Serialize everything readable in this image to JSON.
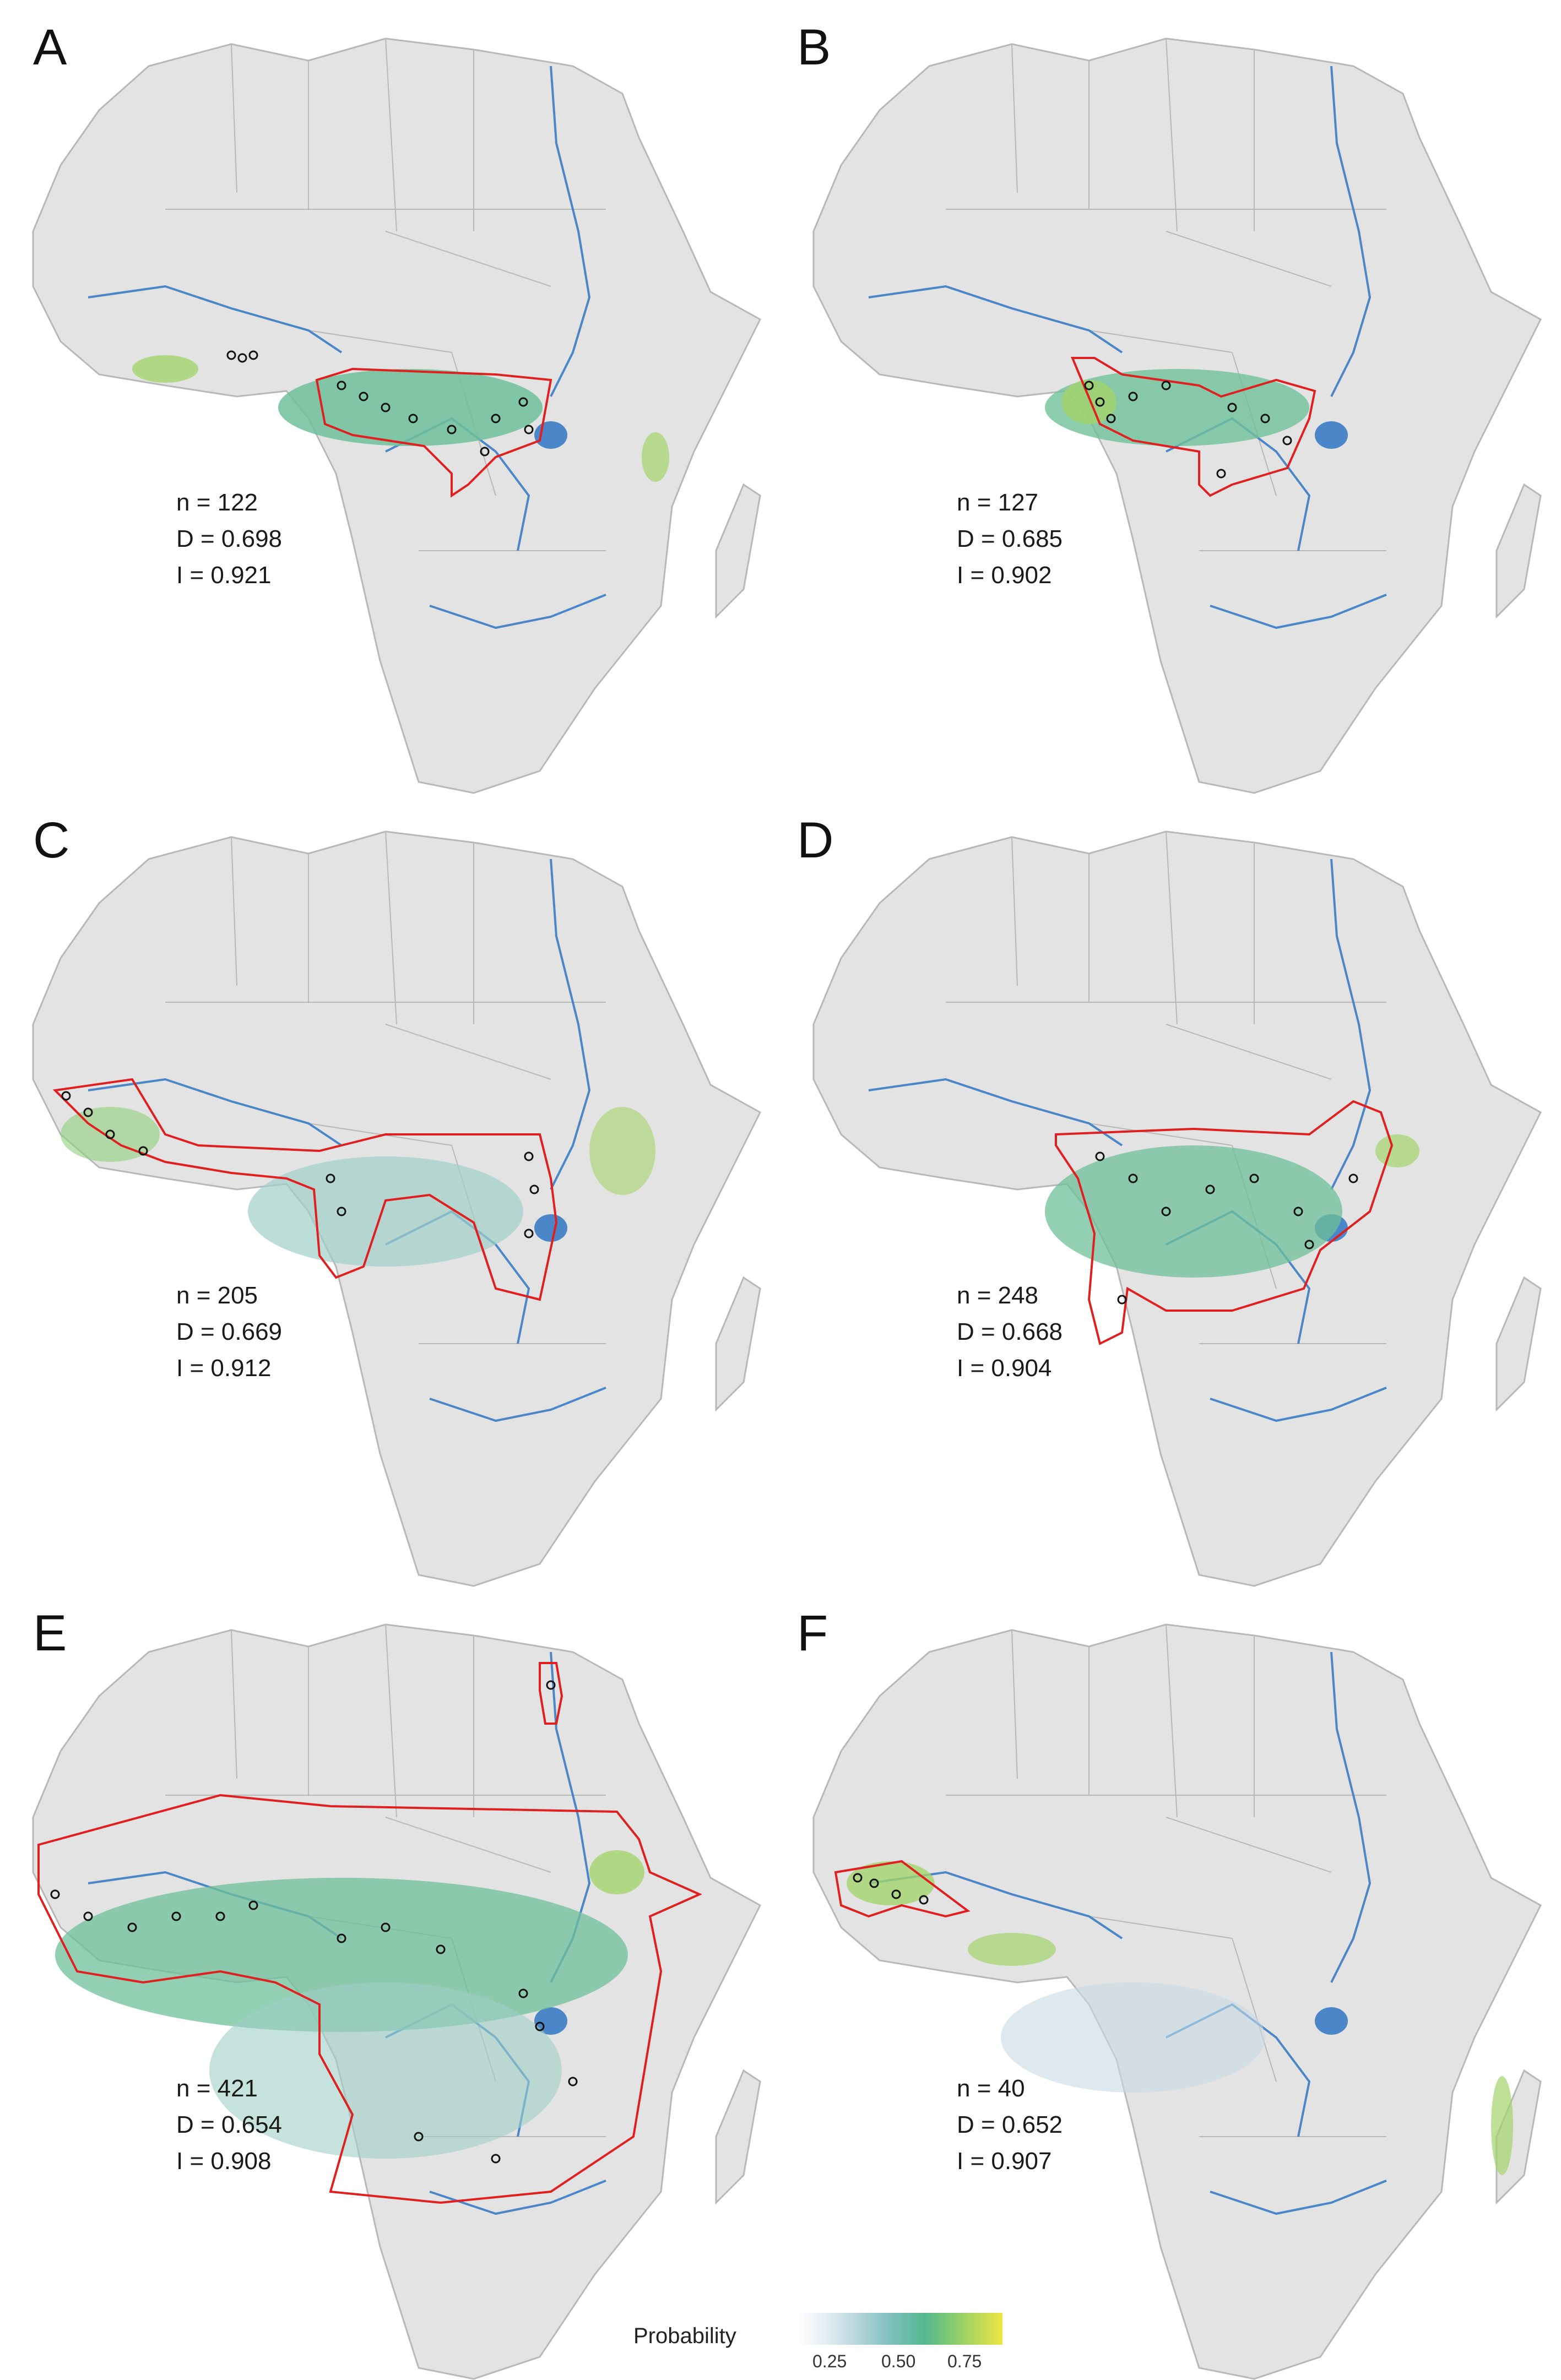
{
  "panels": [
    {
      "id": "A",
      "label": "A",
      "stats": {
        "n": "n = 122",
        "d": "D = 0.698",
        "i": "I = 0.921"
      }
    },
    {
      "id": "B",
      "label": "B",
      "stats": {
        "n": "n = 127",
        "d": "D = 0.685",
        "i": "I = 0.902"
      }
    },
    {
      "id": "C",
      "label": "C",
      "stats": {
        "n": "n = 205",
        "d": "D = 0.669",
        "i": "I = 0.912"
      }
    },
    {
      "id": "D",
      "label": "D",
      "stats": {
        "n": "n = 248",
        "d": "D = 0.668",
        "i": "I = 0.904"
      }
    },
    {
      "id": "E",
      "label": "E",
      "stats": {
        "n": "n = 421",
        "d": "D = 0.654",
        "i": "I = 0.908"
      }
    },
    {
      "id": "F",
      "label": "F",
      "stats": {
        "n": "n = 40",
        "d": "D = 0.652",
        "i": "I = 0.907"
      }
    }
  ],
  "legend": {
    "title": "Probability",
    "ticks": [
      "0.25",
      "0.50",
      "0.75"
    ],
    "colors": {
      "low": "#ffffff",
      "mid": "#54b88f",
      "high": "#f0e442"
    }
  },
  "colors": {
    "land": "#e3e3e3",
    "borders": "#b8b8b8",
    "rivers": "#4a86c8",
    "range_outline": "#e02020",
    "points": "#111111"
  }
}
